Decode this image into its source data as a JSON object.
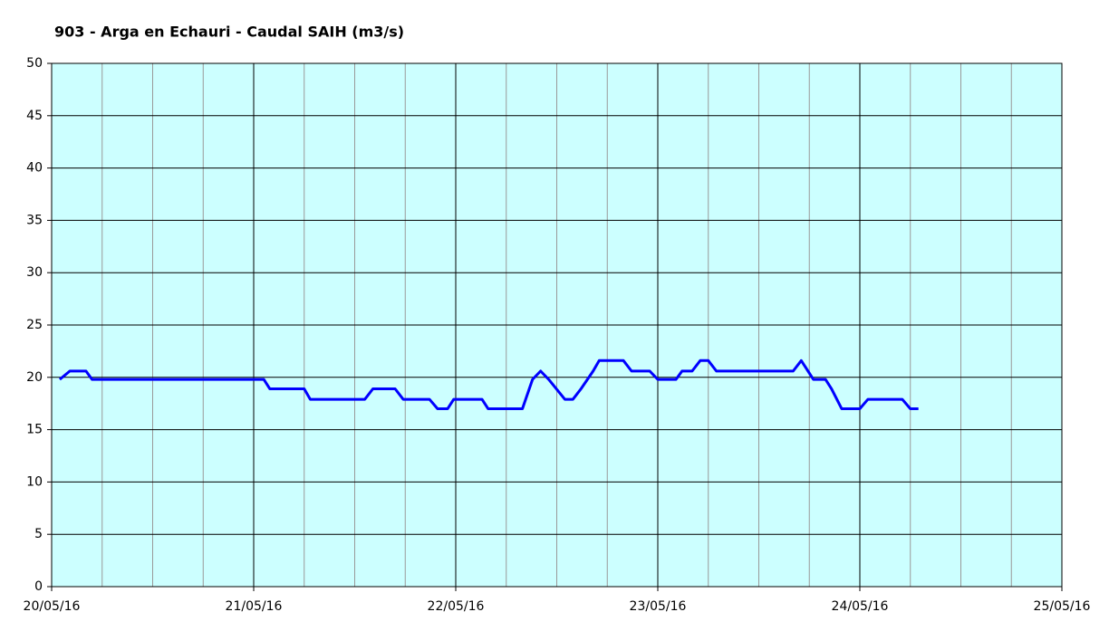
{
  "chart_data": {
    "type": "line",
    "title": "903 - Arga en Echauri - Caudal SAIH (m3/s)",
    "x": [
      0.04,
      0.09,
      0.17,
      0.2,
      1.05,
      1.08,
      1.25,
      1.28,
      1.55,
      1.59,
      1.7,
      1.74,
      1.87,
      1.91,
      1.96,
      1.99,
      2.13,
      2.16,
      2.33,
      2.38,
      2.42,
      2.46,
      2.54,
      2.58,
      2.62,
      2.68,
      2.71,
      2.83,
      2.87,
      2.96,
      3.0,
      3.09,
      3.12,
      3.17,
      3.21,
      3.25,
      3.29,
      3.67,
      3.71,
      3.77,
      3.83,
      3.86,
      3.91,
      4.0,
      4.04,
      4.21,
      4.25,
      4.29
    ],
    "values": [
      19.8,
      20.6,
      20.6,
      19.8,
      19.8,
      18.9,
      18.9,
      17.9,
      17.9,
      18.9,
      18.9,
      17.9,
      17.9,
      17.0,
      17.0,
      17.9,
      17.9,
      17.0,
      17.0,
      19.8,
      20.6,
      19.8,
      17.9,
      17.9,
      18.9,
      20.6,
      21.6,
      21.6,
      20.6,
      20.6,
      19.8,
      19.8,
      20.6,
      20.6,
      21.6,
      21.6,
      20.6,
      20.6,
      21.6,
      19.8,
      19.8,
      18.9,
      17.0,
      17.0,
      17.9,
      17.9,
      17.0,
      17.0
    ],
    "color": "#0000ff",
    "xlim": [
      0,
      5
    ],
    "xticks": [
      {
        "value": 0,
        "label": "20/05/16"
      },
      {
        "value": 1,
        "label": "21/05/16"
      },
      {
        "value": 2,
        "label": "22/05/16"
      },
      {
        "value": 3,
        "label": "23/05/16"
      },
      {
        "value": 4,
        "label": "24/05/16"
      },
      {
        "value": 5,
        "label": "25/05/16"
      }
    ],
    "x_minor_per_major": 4,
    "ylim": [
      0,
      50
    ],
    "yticks": [
      0,
      5,
      10,
      15,
      20,
      25,
      30,
      35,
      40,
      45,
      50
    ],
    "grid": true,
    "background": "#ccffff"
  }
}
